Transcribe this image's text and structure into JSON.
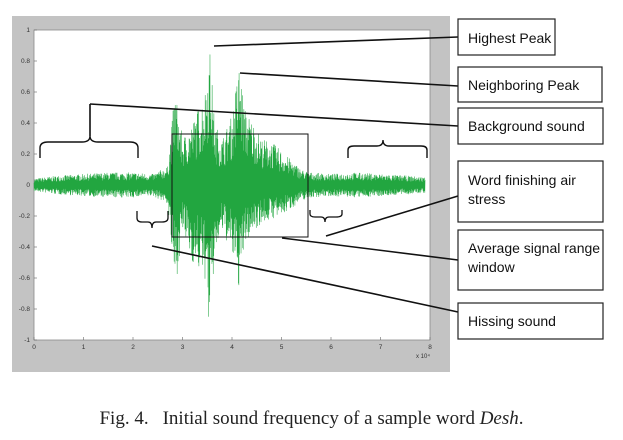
{
  "chart_data": {
    "type": "line",
    "x_ticks": [
      0,
      1,
      2,
      3,
      4,
      5,
      6,
      7,
      8
    ],
    "x_exponent": "x 10⁴",
    "xlim": [
      0,
      8
    ],
    "y_ticks": [
      "1",
      "0.8",
      "0.6",
      "0.4",
      "0.2",
      "0",
      "-0.2",
      "-0.4",
      "-0.6",
      "-0.8",
      "-1"
    ],
    "ylim": [
      -1,
      1
    ],
    "series_color": "#22a640",
    "envelope": {
      "x": [
        0,
        0.5,
        1.0,
        1.5,
        2.0,
        2.4,
        2.7,
        2.85,
        3.0,
        3.2,
        3.45,
        3.55,
        3.65,
        3.8,
        4.0,
        4.15,
        4.25,
        4.4,
        4.6,
        4.8,
        5.0,
        5.2,
        5.4,
        5.6,
        6.0,
        6.5,
        7.0,
        7.5,
        7.9
      ],
      "upper": [
        0.04,
        0.06,
        0.07,
        0.08,
        0.08,
        0.07,
        0.12,
        0.62,
        0.3,
        0.4,
        0.6,
        0.9,
        0.4,
        0.3,
        0.45,
        0.8,
        0.5,
        0.42,
        0.3,
        0.28,
        0.22,
        0.16,
        0.1,
        0.08,
        0.07,
        0.08,
        0.07,
        0.06,
        0.05
      ],
      "lower": [
        -0.04,
        -0.06,
        -0.07,
        -0.08,
        -0.08,
        -0.07,
        -0.12,
        -0.68,
        -0.3,
        -0.5,
        -0.6,
        -0.98,
        -0.45,
        -0.3,
        -0.45,
        -0.68,
        -0.4,
        -0.3,
        -0.25,
        -0.22,
        -0.2,
        -0.15,
        -0.1,
        -0.08,
        -0.07,
        -0.08,
        -0.07,
        -0.06,
        -0.05
      ]
    },
    "annotations": [
      {
        "id": "highest-peak",
        "label": "Highest Peak"
      },
      {
        "id": "neighboring-peak",
        "label": "Neighboring Peak"
      },
      {
        "id": "background-sound",
        "label": "Background sound"
      },
      {
        "id": "word-finishing",
        "label": "Word finishing air stress"
      },
      {
        "id": "average-window",
        "label": "Average signal range window"
      },
      {
        "id": "hissing-sound",
        "label": "Hissing sound"
      }
    ]
  },
  "caption": {
    "number": "Fig. 4.",
    "text": "Initial sound frequency of a sample word ",
    "italic": "Desh",
    "end": "."
  }
}
